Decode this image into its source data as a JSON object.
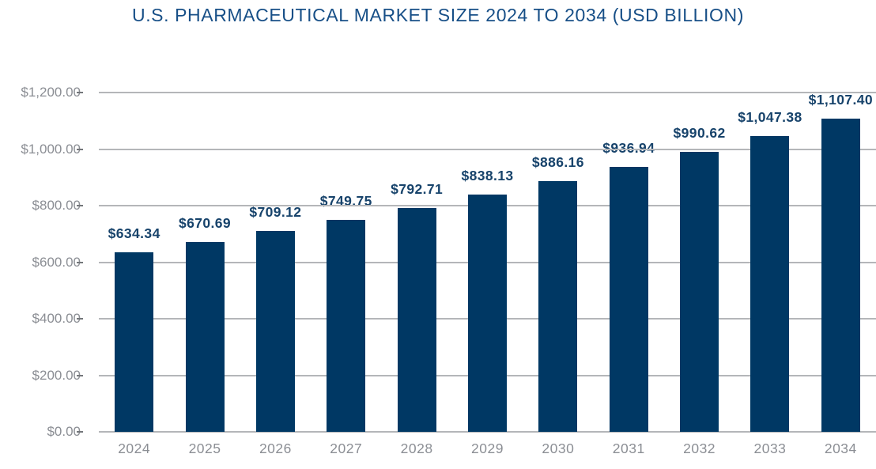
{
  "chart_data": {
    "type": "bar",
    "title": "U.S. PHARMACEUTICAL MARKET SIZE 2024 TO 2034 (USD BILLION)",
    "categories": [
      "2024",
      "2025",
      "2026",
      "2027",
      "2028",
      "2029",
      "2030",
      "2031",
      "2032",
      "2033",
      "2034"
    ],
    "values": [
      634.34,
      670.69,
      709.12,
      749.75,
      792.71,
      838.13,
      886.16,
      936.94,
      990.62,
      1047.38,
      1107.4
    ],
    "value_labels": [
      "$634.34",
      "$670.69",
      "$709.12",
      "$749.75",
      "$792.71",
      "$838.13",
      "$886.16",
      "$936.94",
      "$990.62",
      "$1,047.38",
      "$1,107.40"
    ],
    "xlabel": "",
    "ylabel": "",
    "ylim": [
      0,
      1200
    ],
    "ytick_step": 200,
    "ytick_labels": [
      "$0.00",
      "$200.00",
      "$400.00",
      "$600.00",
      "$800.00",
      "$1,000.00",
      "$1,200.00"
    ],
    "grid": true,
    "legend": false,
    "colors": {
      "bar": "#003864",
      "title": "#174f87",
      "value_label": "#17436b",
      "axis_text": "#8b8e94",
      "gridline": "#b4b6b9",
      "tick": "#73767a",
      "background": "#ffffff"
    }
  }
}
